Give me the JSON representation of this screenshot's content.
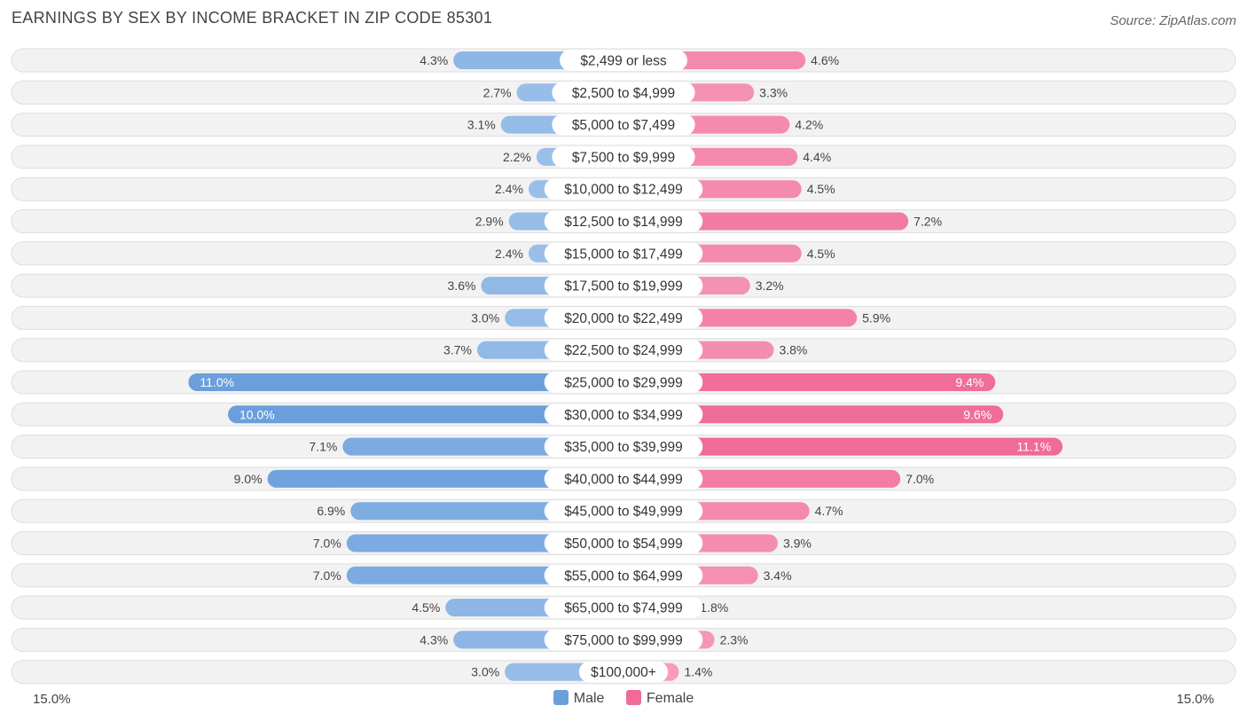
{
  "title": "EARNINGS BY SEX BY INCOME BRACKET IN ZIP CODE 85301",
  "source": "Source: ZipAtlas.com",
  "colors": {
    "male": "#6a9fdc",
    "male_light": "#a9c8ec",
    "female": "#f06b97",
    "female_light": "#f7a3bf",
    "row_bg": "#f2f2f2"
  },
  "chart_data": {
    "type": "bar",
    "orientation": "horizontal-diverging",
    "title": "EARNINGS BY SEX BY INCOME BRACKET IN ZIP CODE 85301",
    "categories": [
      "$2,499 or less",
      "$2,500 to $4,999",
      "$5,000 to $7,499",
      "$7,500 to $9,999",
      "$10,000 to $12,499",
      "$12,500 to $14,999",
      "$15,000 to $17,499",
      "$17,500 to $19,999",
      "$20,000 to $22,499",
      "$22,500 to $24,999",
      "$25,000 to $29,999",
      "$30,000 to $34,999",
      "$35,000 to $39,999",
      "$40,000 to $44,999",
      "$45,000 to $49,999",
      "$50,000 to $54,999",
      "$55,000 to $64,999",
      "$65,000 to $74,999",
      "$75,000 to $99,999",
      "$100,000+"
    ],
    "series": [
      {
        "name": "Male",
        "values": [
          4.3,
          2.7,
          3.1,
          2.2,
          2.4,
          2.9,
          2.4,
          3.6,
          3.0,
          3.7,
          11.0,
          10.0,
          7.1,
          9.0,
          6.9,
          7.0,
          7.0,
          4.5,
          4.3,
          3.0
        ]
      },
      {
        "name": "Female",
        "values": [
          4.6,
          3.3,
          4.2,
          4.4,
          4.5,
          7.2,
          4.5,
          3.2,
          5.9,
          3.8,
          9.4,
          9.6,
          11.1,
          7.0,
          4.7,
          3.9,
          3.4,
          1.8,
          2.3,
          1.4
        ]
      }
    ],
    "value_labels": {
      "Male": [
        "4.3%",
        "2.7%",
        "3.1%",
        "2.2%",
        "2.4%",
        "2.9%",
        "2.4%",
        "3.6%",
        "3.0%",
        "3.7%",
        "11.0%",
        "10.0%",
        "7.1%",
        "9.0%",
        "6.9%",
        "7.0%",
        "7.0%",
        "4.5%",
        "4.3%",
        "3.0%"
      ],
      "Female": [
        "4.6%",
        "3.3%",
        "4.2%",
        "4.4%",
        "4.5%",
        "7.2%",
        "4.5%",
        "3.2%",
        "5.9%",
        "3.8%",
        "9.4%",
        "9.6%",
        "11.1%",
        "7.0%",
        "4.7%",
        "3.9%",
        "3.4%",
        "1.8%",
        "2.3%",
        "1.4%"
      ]
    },
    "xlim": [
      -15.0,
      15.0
    ],
    "axis_left_label": "15.0%",
    "axis_right_label": "15.0%",
    "legend": [
      "Male",
      "Female"
    ],
    "legend_position": "bottom-center"
  }
}
